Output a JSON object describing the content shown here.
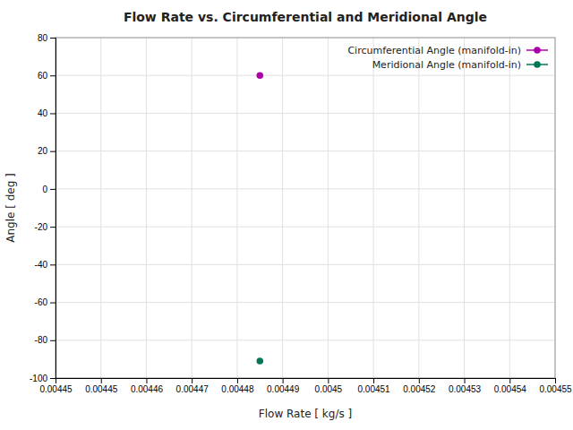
{
  "chart_data": {
    "type": "line",
    "title": "Flow Rate vs. Circumferential and Meridional Angle",
    "xlabel": "Flow Rate [ kg/s ]",
    "ylabel": "Angle [ deg ]",
    "x": [
      0.00449
    ],
    "series": [
      {
        "name": "Circumferential Angle (manifold-in)",
        "color": "#aa00aa",
        "values": [
          60.0
        ]
      },
      {
        "name": "Meridional Angle (manifold-in)",
        "color": "#007755",
        "values": [
          -91.0
        ]
      }
    ],
    "marker": "circle",
    "line_style": "solid",
    "xlim": [
      0.004445,
      0.004555
    ],
    "xticks": [
      {
        "value": 0.004445,
        "label": "0.00445"
      },
      {
        "value": 0.004455,
        "label": "0.00445"
      },
      {
        "value": 0.004465,
        "label": "0.00446"
      },
      {
        "value": 0.004475,
        "label": "0.00447"
      },
      {
        "value": 0.004485,
        "label": "0.00448"
      },
      {
        "value": 0.004495,
        "label": "0.00449"
      },
      {
        "value": 0.004505,
        "label": "0.0045"
      },
      {
        "value": 0.004515,
        "label": "0.00451"
      },
      {
        "value": 0.004525,
        "label": "0.00452"
      },
      {
        "value": 0.004535,
        "label": "0.00453"
      },
      {
        "value": 0.004545,
        "label": "0.00454"
      },
      {
        "value": 0.004555,
        "label": "0.00455"
      }
    ],
    "ylim": [
      -100,
      80
    ],
    "yticks": [
      -100,
      -80,
      -60,
      -40,
      -20,
      0,
      20,
      40,
      60,
      80
    ],
    "grid": true,
    "legend": "upper right"
  }
}
